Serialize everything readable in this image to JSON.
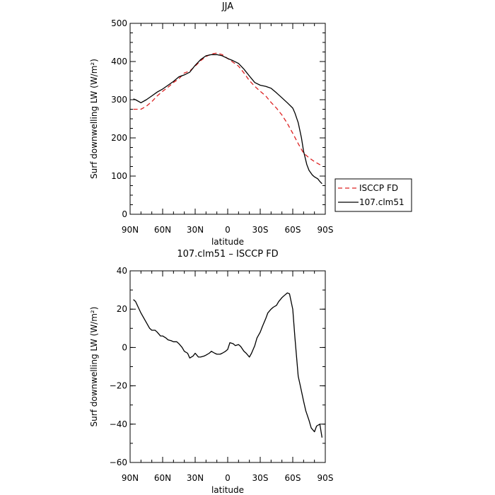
{
  "chart_data": [
    {
      "type": "line",
      "title": "JJA",
      "xlabel": "latitude",
      "ylabel": "Surf downwelling LW (W/m²)",
      "xlim": [
        90,
        -90
      ],
      "ylim": [
        0,
        500
      ],
      "x_ticks": [
        {
          "value": 90,
          "label": "90N"
        },
        {
          "value": 60,
          "label": "60N"
        },
        {
          "value": 30,
          "label": "30N"
        },
        {
          "value": 0,
          "label": "0"
        },
        {
          "value": -30,
          "label": "30S"
        },
        {
          "value": -60,
          "label": "60S"
        },
        {
          "value": -90,
          "label": "90S"
        }
      ],
      "y_ticks": [
        {
          "value": 0,
          "label": "0"
        },
        {
          "value": 100,
          "label": "100"
        },
        {
          "value": 200,
          "label": "200"
        },
        {
          "value": 300,
          "label": "300"
        },
        {
          "value": 400,
          "label": "400"
        },
        {
          "value": 500,
          "label": "500"
        }
      ],
      "legend_position": "right",
      "series": [
        {
          "name": "ISCCP FD",
          "color": "#dd2222",
          "dash": "dashed",
          "x": [
            87,
            80,
            75,
            70,
            65,
            60,
            55,
            50,
            45,
            40,
            35,
            30,
            25,
            20,
            15,
            10,
            5,
            0,
            -5,
            -10,
            -15,
            -20,
            -25,
            -30,
            -35,
            -40,
            -45,
            -50,
            -55,
            -60,
            -65,
            -70,
            -75,
            -80,
            -85,
            -87
          ],
          "values": [
            275,
            275,
            283,
            295,
            310,
            322,
            333,
            345,
            355,
            370,
            375,
            388,
            402,
            413,
            420,
            422,
            418,
            408,
            398,
            388,
            370,
            350,
            335,
            322,
            310,
            293,
            278,
            260,
            238,
            212,
            185,
            160,
            148,
            138,
            130,
            128
          ]
        },
        {
          "name": "107.clm51",
          "color": "#000000",
          "dash": "solid",
          "x": [
            87,
            85,
            80,
            75,
            70,
            65,
            60,
            55,
            50,
            45,
            40,
            35,
            30,
            25,
            20,
            15,
            10,
            5,
            0,
            -5,
            -10,
            -15,
            -20,
            -25,
            -30,
            -35,
            -40,
            -45,
            -50,
            -55,
            -60,
            -62,
            -65,
            -68,
            -70,
            -73,
            -75,
            -78,
            -80,
            -83,
            -85,
            -87
          ],
          "values": [
            302,
            300,
            292,
            300,
            310,
            320,
            328,
            338,
            348,
            360,
            365,
            372,
            390,
            405,
            415,
            418,
            418,
            415,
            408,
            402,
            395,
            380,
            362,
            345,
            338,
            335,
            330,
            318,
            305,
            292,
            278,
            265,
            240,
            200,
            165,
            130,
            115,
            103,
            98,
            93,
            86,
            80
          ]
        }
      ]
    },
    {
      "type": "line",
      "title": "107.clm51 – ISCCP FD",
      "xlabel": "latitude",
      "ylabel": "Surf downwelling LW (W/m²)",
      "xlim": [
        90,
        -90
      ],
      "ylim": [
        -60,
        40
      ],
      "x_ticks": [
        {
          "value": 90,
          "label": "90N"
        },
        {
          "value": 60,
          "label": "60N"
        },
        {
          "value": 30,
          "label": "30N"
        },
        {
          "value": 0,
          "label": "0"
        },
        {
          "value": -30,
          "label": "30S"
        },
        {
          "value": -60,
          "label": "60S"
        },
        {
          "value": -90,
          "label": "90S"
        }
      ],
      "y_ticks": [
        {
          "value": -60,
          "label": "−60"
        },
        {
          "value": -40,
          "label": "−40"
        },
        {
          "value": -20,
          "label": "−20"
        },
        {
          "value": 0,
          "label": "0"
        },
        {
          "value": 20,
          "label": "20"
        },
        {
          "value": 40,
          "label": "40"
        }
      ],
      "series": [
        {
          "color": "#000000",
          "x": [
            87,
            85,
            80,
            75,
            72,
            70,
            67,
            65,
            62,
            60,
            57,
            55,
            52,
            50,
            47,
            45,
            42,
            40,
            37,
            35,
            32,
            30,
            27,
            25,
            22,
            20,
            17,
            15,
            12,
            10,
            7,
            5,
            2,
            0,
            -2,
            -5,
            -7,
            -10,
            -12,
            -15,
            -17,
            -20,
            -22,
            -25,
            -27,
            -30,
            -32,
            -35,
            -37,
            -40,
            -42,
            -45,
            -47,
            -50,
            -52,
            -55,
            -57,
            -60,
            -62,
            -65,
            -67,
            -70,
            -72,
            -75,
            -77,
            -80,
            -82,
            -85,
            -87
          ],
          "values": [
            25,
            24,
            18,
            13,
            10,
            9,
            9,
            8,
            6,
            6,
            5,
            4,
            3.5,
            3,
            3,
            2,
            0,
            -2,
            -3,
            -5.5,
            -4.5,
            -3,
            -5,
            -5,
            -4.5,
            -4,
            -3,
            -2,
            -3,
            -3.5,
            -3.5,
            -3,
            -2,
            -1,
            2.5,
            2,
            1,
            1.5,
            0.5,
            -2,
            -3,
            -5,
            -3,
            1,
            5,
            8,
            11,
            15,
            18,
            20,
            21,
            22,
            24,
            26,
            27,
            28.5,
            28,
            20,
            5,
            -15,
            -20,
            -28,
            -33,
            -38,
            -42,
            -44,
            -41,
            -40,
            -47
          ]
        }
      ]
    }
  ]
}
